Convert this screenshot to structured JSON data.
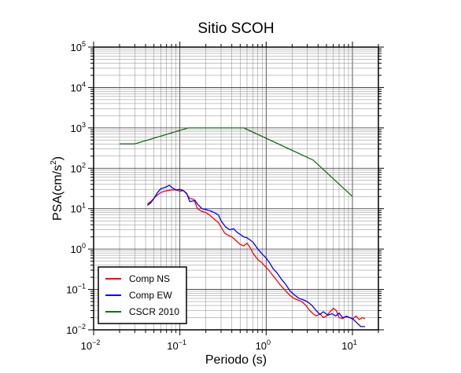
{
  "chart_data": {
    "type": "line",
    "title": "Sitio SCOH",
    "xlabel": "Periodo (s)",
    "ylabel_main": "PSA(cm/s",
    "ylabel_sup": "2",
    "ylabel_close": ")",
    "xscale": "log",
    "yscale": "log",
    "xlim": [
      0.01,
      20
    ],
    "ylim": [
      0.01,
      100000
    ],
    "grid": true,
    "legend_position": "bottom-left",
    "x_ticks": [
      {
        "value": 0.01,
        "base": "10",
        "exp": "−2"
      },
      {
        "value": 0.1,
        "base": "10",
        "exp": "−1"
      },
      {
        "value": 1,
        "base": "10",
        "exp": "0"
      },
      {
        "value": 10,
        "base": "10",
        "exp": "1"
      }
    ],
    "y_ticks": [
      {
        "value": 0.01,
        "base": "10",
        "exp": "−2"
      },
      {
        "value": 0.1,
        "base": "10",
        "exp": "−1"
      },
      {
        "value": 1,
        "base": "10",
        "exp": "0"
      },
      {
        "value": 10,
        "base": "10",
        "exp": "1"
      },
      {
        "value": 100,
        "base": "10",
        "exp": "2"
      },
      {
        "value": 1000,
        "base": "10",
        "exp": "3"
      },
      {
        "value": 10000,
        "base": "10",
        "exp": "4"
      },
      {
        "value": 100000,
        "base": "10",
        "exp": "5"
      }
    ],
    "series": [
      {
        "name": "Comp NS",
        "color": "#ff0000",
        "points": [
          [
            0.042,
            13
          ],
          [
            0.046,
            15
          ],
          [
            0.05,
            18
          ],
          [
            0.055,
            22
          ],
          [
            0.06,
            25
          ],
          [
            0.066,
            27
          ],
          [
            0.072,
            28
          ],
          [
            0.08,
            29
          ],
          [
            0.09,
            29
          ],
          [
            0.1,
            27
          ],
          [
            0.11,
            28
          ],
          [
            0.12,
            23
          ],
          [
            0.13,
            18
          ],
          [
            0.145,
            17
          ],
          [
            0.16,
            10
          ],
          [
            0.18,
            8.5
          ],
          [
            0.2,
            8
          ],
          [
            0.22,
            7
          ],
          [
            0.25,
            5.5
          ],
          [
            0.28,
            4.5
          ],
          [
            0.3,
            3.5
          ],
          [
            0.33,
            2.5
          ],
          [
            0.36,
            2.2
          ],
          [
            0.4,
            2
          ],
          [
            0.45,
            1.6
          ],
          [
            0.5,
            1.3
          ],
          [
            0.55,
            1.2
          ],
          [
            0.6,
            1.4
          ],
          [
            0.65,
            1.1
          ],
          [
            0.7,
            0.8
          ],
          [
            0.8,
            0.55
          ],
          [
            0.9,
            0.45
          ],
          [
            1,
            0.35
          ],
          [
            1.1,
            0.28
          ],
          [
            1.2,
            0.22
          ],
          [
            1.35,
            0.16
          ],
          [
            1.5,
            0.12
          ],
          [
            1.7,
            0.09
          ],
          [
            1.9,
            0.07
          ],
          [
            2.1,
            0.06
          ],
          [
            2.3,
            0.055
          ],
          [
            2.6,
            0.05
          ],
          [
            2.9,
            0.04
          ],
          [
            3.2,
            0.03
          ],
          [
            3.5,
            0.025
          ],
          [
            3.8,
            0.022
          ],
          [
            4.2,
            0.025
          ],
          [
            4.6,
            0.02
          ],
          [
            5,
            0.022
          ],
          [
            5.5,
            0.028
          ],
          [
            6,
            0.034
          ],
          [
            6.5,
            0.03
          ],
          [
            7,
            0.02
          ],
          [
            7.7,
            0.019
          ],
          [
            8.5,
            0.022
          ],
          [
            9.3,
            0.02
          ],
          [
            10.2,
            0.019
          ],
          [
            11,
            0.022
          ],
          [
            12,
            0.018
          ],
          [
            13,
            0.02
          ],
          [
            14,
            0.019
          ]
        ]
      },
      {
        "name": "Comp EW",
        "color": "#0000ff",
        "points": [
          [
            0.042,
            12
          ],
          [
            0.046,
            14
          ],
          [
            0.05,
            18
          ],
          [
            0.055,
            25
          ],
          [
            0.06,
            31
          ],
          [
            0.066,
            33
          ],
          [
            0.072,
            36
          ],
          [
            0.076,
            38
          ],
          [
            0.08,
            34
          ],
          [
            0.09,
            29
          ],
          [
            0.1,
            30
          ],
          [
            0.11,
            28
          ],
          [
            0.12,
            24
          ],
          [
            0.13,
            15
          ],
          [
            0.15,
            16
          ],
          [
            0.16,
            13
          ],
          [
            0.18,
            10
          ],
          [
            0.2,
            9.5
          ],
          [
            0.22,
            9
          ],
          [
            0.25,
            8
          ],
          [
            0.28,
            7
          ],
          [
            0.3,
            5
          ],
          [
            0.34,
            3.5
          ],
          [
            0.38,
            3
          ],
          [
            0.42,
            3.2
          ],
          [
            0.46,
            2.6
          ],
          [
            0.5,
            2.3
          ],
          [
            0.55,
            2
          ],
          [
            0.6,
            1.9
          ],
          [
            0.7,
            1.5
          ],
          [
            0.8,
            1
          ],
          [
            0.9,
            0.75
          ],
          [
            1,
            0.6
          ],
          [
            1.1,
            0.45
          ],
          [
            1.2,
            0.33
          ],
          [
            1.35,
            0.25
          ],
          [
            1.5,
            0.18
          ],
          [
            1.7,
            0.13
          ],
          [
            1.9,
            0.09
          ],
          [
            2.1,
            0.075
          ],
          [
            2.4,
            0.06
          ],
          [
            2.7,
            0.055
          ],
          [
            3,
            0.05
          ],
          [
            3.4,
            0.04
          ],
          [
            3.8,
            0.03
          ],
          [
            4.2,
            0.024
          ],
          [
            4.6,
            0.028
          ],
          [
            5.2,
            0.023
          ],
          [
            5.8,
            0.025
          ],
          [
            6.4,
            0.022
          ],
          [
            7,
            0.026
          ],
          [
            7.7,
            0.02
          ],
          [
            8.5,
            0.021
          ],
          [
            9.4,
            0.02
          ],
          [
            10.3,
            0.018
          ],
          [
            11.2,
            0.015
          ],
          [
            12.5,
            0.012
          ],
          [
            14,
            0.012
          ]
        ]
      },
      {
        "name": "CSCR 2010",
        "color": "#1a6b1a",
        "points": [
          [
            0.02,
            400
          ],
          [
            0.03,
            400
          ],
          [
            0.125,
            1000
          ],
          [
            0.55,
            1000
          ],
          [
            3.5,
            160
          ],
          [
            10,
            20
          ]
        ]
      }
    ]
  }
}
